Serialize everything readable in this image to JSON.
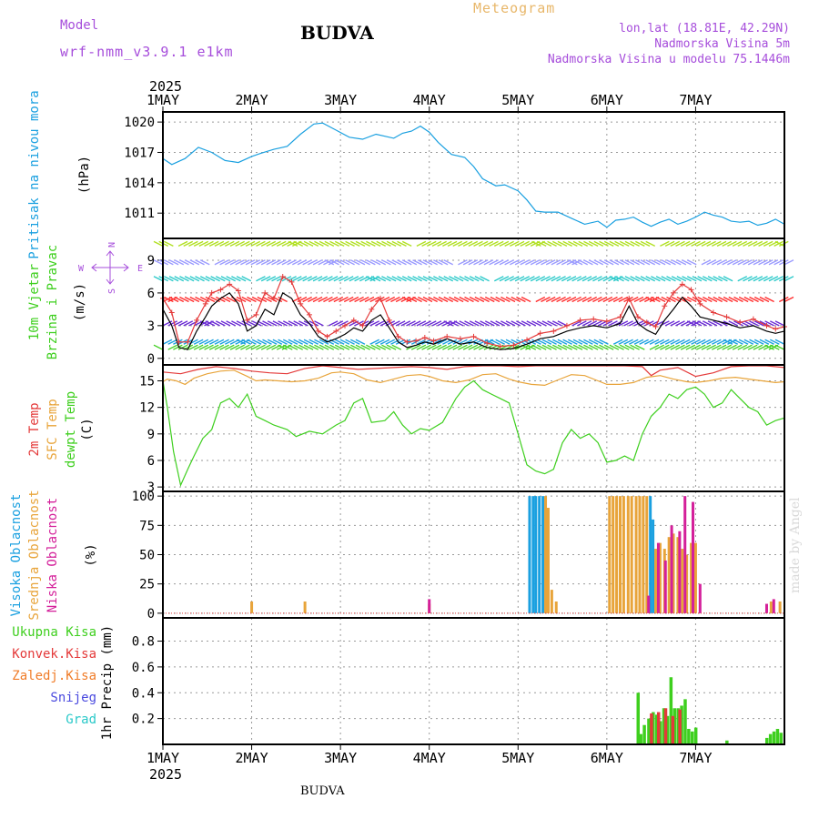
{
  "header": {
    "model_label": "Model",
    "model_name": "wrf-nmm_v3.9.1 e1km",
    "title": "BUDVA",
    "meteogram_label": "Meteogram",
    "lonlat": "lon,lat (18.81E, 42.29N)",
    "altitude": "Nadmorska Visina 5m",
    "model_altitude": "Nadmorska Visina u modelu 75.1446m",
    "footer_title": "BUDVA",
    "credit": "made by Angel"
  },
  "colors": {
    "pressure": "#1aa0e0",
    "wind_speed": "#000000",
    "wind_gust": "#e43a3a",
    "temp_2m": "#e43a3a",
    "temp_sfc": "#e8a43a",
    "dewpoint": "#3ecf1e",
    "cloud_high": "#1aa0e0",
    "cloud_mid": "#e8a43a",
    "cloud_low": "#d4209a",
    "precip_total": "#3ecf1e",
    "precip_conv": "#e43a3a",
    "precip_frz": "#f07c28",
    "precip_snow": "#4a4adf",
    "precip_graupel": "#2ac9c9",
    "compass": "#a64ddb"
  },
  "chart_data": [
    {
      "type": "line",
      "panel": "pressure",
      "ylabel": "Pritisak na nivou mora",
      "unit": "(hPa)",
      "ylim": [
        1008.5,
        1021
      ],
      "yticks": [
        1011,
        1014,
        1017,
        1020
      ],
      "x_year": "2025",
      "x_ticks": [
        "1MAY",
        "2MAY",
        "3MAY",
        "4MAY",
        "5MAY",
        "6MAY",
        "7MAY"
      ],
      "grid": true,
      "series": [
        {
          "x": [
            0,
            0.1,
            0.25,
            0.4,
            0.55,
            0.7,
            0.85,
            1.0,
            1.1,
            1.25,
            1.4,
            1.55,
            1.7,
            1.8,
            1.95,
            2.1,
            2.25,
            2.4,
            2.5,
            2.6,
            2.7,
            2.8,
            2.9,
            3.0,
            3.1,
            3.25,
            3.4,
            3.5,
            3.6,
            3.75,
            3.85,
            4.0,
            4.1,
            4.2,
            4.3,
            4.45,
            4.6,
            4.75,
            4.9,
            5.0,
            5.1,
            5.2,
            5.3,
            5.4,
            5.5,
            5.6,
            5.7,
            5.8,
            5.9,
            6.0,
            6.1,
            6.2,
            6.3,
            6.4,
            6.5,
            6.6,
            6.7,
            6.8,
            6.9,
            7.0
          ],
          "values": [
            1016.4,
            1015.8,
            1016.4,
            1017.5,
            1017.0,
            1016.2,
            1016.0,
            1016.6,
            1016.9,
            1017.3,
            1017.6,
            1018.8,
            1019.8,
            1019.9,
            1019.2,
            1018.5,
            1018.3,
            1018.8,
            1018.6,
            1018.4,
            1018.9,
            1019.1,
            1019.6,
            1019.0,
            1018.0,
            1016.8,
            1016.5,
            1015.6,
            1014.4,
            1013.7,
            1013.8,
            1013.2,
            1012.3,
            1011.2,
            1011.1,
            1011.1,
            1010.5,
            1009.9,
            1010.2,
            1009.6,
            1010.3,
            1010.4,
            1010.6,
            1010.1,
            1009.7,
            1010.1,
            1010.4,
            1009.9,
            1010.2,
            1010.6,
            1011.1,
            1010.8,
            1010.6,
            1010.2,
            1010.1,
            1010.2,
            1009.8,
            1010.0,
            1010.4,
            1009.9
          ]
        }
      ]
    },
    {
      "type": "line",
      "panel": "wind",
      "ylabel": [
        "10m Vjetar",
        "Brzina i Pravac"
      ],
      "unit": "(m/s)",
      "compass": [
        "W",
        "E",
        "N",
        "S"
      ],
      "ylim": [
        -0.6,
        11
      ],
      "yticks": [
        0,
        3,
        6,
        9
      ],
      "grid": true,
      "barb_levels": [
        0.8,
        1.3,
        3.0,
        5.2,
        7.1,
        8.6,
        10.3
      ],
      "barb_colors": [
        "#3ecf1e",
        "#1aa0e0",
        "#6a2ad4",
        "#ff2a2a",
        "#2ac9c9",
        "#9a9aff",
        "#b0e020"
      ],
      "series": [
        {
          "name": "speed",
          "x": [
            0,
            0.1,
            0.18,
            0.28,
            0.38,
            0.48,
            0.55,
            0.65,
            0.75,
            0.85,
            0.95,
            1.05,
            1.15,
            1.25,
            1.35,
            1.45,
            1.55,
            1.65,
            1.75,
            1.85,
            1.95,
            2.05,
            2.15,
            2.25,
            2.35,
            2.45,
            2.55,
            2.65,
            2.75,
            2.85,
            2.95,
            3.05,
            3.2,
            3.35,
            3.5,
            3.65,
            3.8,
            3.95,
            4.1,
            4.25,
            4.4,
            4.55,
            4.7,
            4.85,
            5.0,
            5.15,
            5.25,
            5.35,
            5.45,
            5.55,
            5.65,
            5.75,
            5.85,
            5.95,
            6.05,
            6.2,
            6.35,
            6.5,
            6.65,
            6.8,
            6.9,
            7.0
          ],
          "values": [
            4.5,
            3.0,
            1.0,
            0.8,
            2.5,
            3.8,
            4.8,
            5.5,
            6.0,
            5.0,
            2.5,
            3.0,
            4.5,
            4.0,
            6.0,
            5.5,
            4.0,
            3.2,
            2.0,
            1.5,
            1.8,
            2.2,
            2.8,
            2.5,
            3.5,
            4.0,
            2.8,
            1.5,
            1.0,
            1.2,
            1.5,
            1.3,
            1.8,
            1.3,
            1.5,
            1.0,
            0.8,
            0.9,
            1.3,
            1.8,
            2.0,
            2.5,
            2.8,
            3.0,
            2.8,
            3.2,
            4.8,
            3.2,
            2.6,
            2.2,
            3.5,
            4.5,
            5.6,
            4.8,
            3.8,
            3.5,
            3.2,
            2.8,
            3.0,
            2.5,
            2.3,
            2.5
          ]
        },
        {
          "name": "gust",
          "x": [
            0,
            0.1,
            0.18,
            0.28,
            0.38,
            0.48,
            0.55,
            0.65,
            0.75,
            0.85,
            0.95,
            1.05,
            1.15,
            1.25,
            1.35,
            1.45,
            1.55,
            1.65,
            1.75,
            1.85,
            1.95,
            2.05,
            2.15,
            2.25,
            2.35,
            2.45,
            2.55,
            2.65,
            2.75,
            2.85,
            2.95,
            3.05,
            3.2,
            3.35,
            3.5,
            3.65,
            3.8,
            3.95,
            4.1,
            4.25,
            4.4,
            4.55,
            4.7,
            4.85,
            5.0,
            5.15,
            5.25,
            5.35,
            5.45,
            5.55,
            5.65,
            5.75,
            5.85,
            5.95,
            6.05,
            6.2,
            6.35,
            6.5,
            6.65,
            6.8,
            6.9,
            7.0
          ],
          "values": [
            5.5,
            4.2,
            1.5,
            1.5,
            3.5,
            5.0,
            6.0,
            6.3,
            6.8,
            6.2,
            3.5,
            4.0,
            6.0,
            5.5,
            7.5,
            7.0,
            5.0,
            4.0,
            2.5,
            2.0,
            2.5,
            3.0,
            3.5,
            3.0,
            4.5,
            5.5,
            3.5,
            2.0,
            1.5,
            1.6,
            1.9,
            1.6,
            2.0,
            1.8,
            2.0,
            1.4,
            1.1,
            1.2,
            1.7,
            2.3,
            2.5,
            3.0,
            3.5,
            3.6,
            3.4,
            3.8,
            5.5,
            3.8,
            3.3,
            2.9,
            4.8,
            6.0,
            6.8,
            6.3,
            5.0,
            4.2,
            3.8,
            3.3,
            3.6,
            3.0,
            2.7,
            2.9
          ]
        }
      ]
    },
    {
      "type": "line",
      "panel": "temperature",
      "ylabel": [
        "2m Temp",
        "SFC Temp",
        "dewpt Temp"
      ],
      "unit": "(C)",
      "ylim": [
        2.5,
        16.8
      ],
      "yticks": [
        3,
        6,
        9,
        12,
        15
      ],
      "grid": true,
      "series": [
        {
          "name": "2m Temp",
          "x": [
            0,
            0.2,
            0.4,
            0.6,
            0.8,
            1.0,
            1.2,
            1.4,
            1.6,
            1.8,
            2.0,
            2.2,
            2.4,
            2.6,
            2.8,
            3.0,
            3.2,
            3.4,
            3.6,
            3.8,
            4.0,
            4.2,
            4.4,
            4.6,
            4.8,
            5.0,
            5.2,
            5.4,
            5.5,
            5.6,
            5.8,
            6.0,
            6.2,
            6.4,
            6.6,
            6.8,
            7.0
          ],
          "values": [
            16.0,
            15.8,
            16.3,
            16.6,
            16.4,
            16.1,
            15.9,
            15.8,
            16.4,
            16.7,
            16.5,
            16.3,
            16.4,
            16.5,
            16.6,
            16.5,
            16.3,
            16.6,
            16.8,
            16.7,
            16.6,
            16.8,
            16.9,
            16.8,
            16.7,
            16.9,
            16.8,
            16.6,
            15.6,
            16.2,
            16.5,
            15.5,
            15.9,
            16.6,
            17.2,
            16.7,
            16.5
          ]
        },
        {
          "name": "SFC Temp",
          "x": [
            0,
            0.05,
            0.15,
            0.25,
            0.35,
            0.5,
            0.65,
            0.8,
            0.95,
            1.05,
            1.15,
            1.3,
            1.45,
            1.6,
            1.75,
            1.9,
            2.0,
            2.15,
            2.3,
            2.45,
            2.6,
            2.75,
            2.9,
            3.0,
            3.15,
            3.3,
            3.45,
            3.6,
            3.75,
            3.9,
            4.0,
            4.15,
            4.3,
            4.45,
            4.6,
            4.75,
            4.9,
            5.0,
            5.15,
            5.3,
            5.45,
            5.6,
            5.75,
            5.9,
            6.0,
            6.15,
            6.3,
            6.45,
            6.6,
            6.75,
            6.9,
            7.0
          ],
          "values": [
            14.9,
            15.2,
            15.0,
            14.6,
            15.3,
            15.8,
            16.1,
            16.2,
            15.5,
            15.0,
            15.1,
            15.0,
            14.9,
            15.0,
            15.3,
            15.9,
            16.0,
            15.8,
            15.1,
            14.8,
            15.2,
            15.6,
            15.7,
            15.5,
            15.0,
            14.8,
            15.1,
            15.7,
            15.8,
            15.2,
            14.9,
            14.6,
            14.5,
            15.1,
            15.7,
            15.6,
            15.0,
            14.6,
            14.6,
            14.8,
            15.4,
            15.6,
            15.2,
            14.9,
            14.8,
            15.0,
            15.3,
            15.4,
            15.2,
            15.0,
            14.8,
            14.9
          ]
        },
        {
          "name": "dewpt Temp",
          "x": [
            0,
            0.05,
            0.12,
            0.2,
            0.28,
            0.35,
            0.45,
            0.55,
            0.65,
            0.75,
            0.85,
            0.95,
            1.05,
            1.15,
            1.25,
            1.4,
            1.5,
            1.65,
            1.8,
            1.95,
            2.05,
            2.15,
            2.25,
            2.35,
            2.5,
            2.6,
            2.7,
            2.8,
            2.9,
            3.0,
            3.15,
            3.3,
            3.4,
            3.5,
            3.6,
            3.7,
            3.8,
            3.9,
            4.0,
            4.1,
            4.2,
            4.3,
            4.4,
            4.5,
            4.6,
            4.7,
            4.8,
            4.9,
            5.0,
            5.1,
            5.2,
            5.3,
            5.4,
            5.5,
            5.6,
            5.7,
            5.8,
            5.9,
            6.0,
            6.1,
            6.2,
            6.3,
            6.4,
            6.5,
            6.6,
            6.7,
            6.8,
            6.9,
            7.0
          ],
          "values": [
            15.0,
            12.0,
            7.0,
            3.2,
            5.0,
            6.5,
            8.5,
            9.5,
            12.5,
            13.0,
            12.0,
            13.5,
            11.0,
            10.5,
            10.0,
            9.5,
            8.7,
            9.3,
            9.0,
            10.0,
            10.5,
            12.5,
            13.0,
            10.3,
            10.5,
            11.5,
            10.0,
            9.0,
            9.6,
            9.4,
            10.3,
            13.0,
            14.3,
            15.0,
            14.0,
            13.5,
            13.0,
            12.5,
            9.0,
            5.5,
            4.8,
            4.5,
            5.0,
            8.0,
            9.5,
            8.5,
            9.0,
            8.0,
            5.8,
            6.0,
            6.5,
            6.0,
            9.0,
            11.0,
            12.0,
            13.5,
            13.0,
            14.0,
            14.3,
            13.5,
            12.0,
            12.5,
            14.0,
            13.0,
            12.0,
            11.5,
            10.0,
            10.5,
            10.8
          ]
        }
      ]
    },
    {
      "type": "bar",
      "panel": "cloud",
      "ylabel": [
        "Visoka Oblacnost",
        "Srednja Oblacnost",
        "Niska Oblacnost"
      ],
      "unit": "(%)",
      "ylim": [
        -4,
        104
      ],
      "yticks": [
        0,
        25,
        50,
        75,
        100
      ],
      "grid": true,
      "series": [
        {
          "name": "Visoka Oblacnost",
          "x": [
            4.13,
            4.17,
            4.2,
            4.24,
            4.28,
            5.49,
            5.52
          ],
          "values": [
            100,
            100,
            100,
            100,
            100,
            100,
            80
          ]
        },
        {
          "name": "Srednja Oblacnost",
          "x": [
            1.0,
            1.6,
            3.0,
            4.31,
            4.34,
            4.38,
            4.43,
            5.03,
            5.07,
            5.11,
            5.15,
            5.19,
            5.24,
            5.28,
            5.33,
            5.37,
            5.41,
            5.45,
            5.55,
            5.6,
            5.65,
            5.7,
            5.75,
            5.8,
            5.85,
            5.9,
            5.95,
            6.0,
            6.85,
            6.95
          ],
          "values": [
            10,
            10,
            8,
            100,
            90,
            20,
            10,
            100,
            100,
            100,
            100,
            100,
            100,
            100,
            100,
            100,
            100,
            100,
            55,
            60,
            55,
            65,
            68,
            65,
            55,
            50,
            60,
            60,
            10,
            10
          ]
        },
        {
          "name": "Niska Oblacnost",
          "x": [
            3.0,
            5.47,
            5.58,
            5.66,
            5.73,
            5.82,
            5.88,
            5.97,
            6.05,
            6.8,
            6.88
          ],
          "values": [
            12,
            15,
            60,
            45,
            75,
            70,
            100,
            95,
            25,
            8,
            12
          ]
        }
      ]
    },
    {
      "type": "bar",
      "panel": "precip",
      "ylabel": "1hr Precip",
      "unit": "(mm)",
      "legend": [
        "Ukupna Kisa",
        "Konvek.Kisa",
        "Zaledj.Kisa",
        "Snijeg",
        "Grad"
      ],
      "ylim": [
        0,
        0.98
      ],
      "yticks": [
        0.2,
        0.4,
        0.6,
        0.8
      ],
      "grid": true,
      "series": [
        {
          "name": "Ukupna Kisa",
          "x": [
            5.35,
            5.38,
            5.42,
            5.47,
            5.52,
            5.56,
            5.6,
            5.64,
            5.68,
            5.72,
            5.76,
            5.8,
            5.84,
            5.88,
            5.92,
            5.96,
            6.0,
            6.05,
            6.35,
            6.8,
            6.84,
            6.88,
            6.92,
            6.96
          ],
          "values": [
            0.4,
            0.08,
            0.15,
            0.2,
            0.25,
            0.23,
            0.18,
            0.28,
            0.22,
            0.52,
            0.28,
            0.28,
            0.3,
            0.35,
            0.12,
            0.1,
            0.13,
            0,
            0.03,
            0.05,
            0.08,
            0.1,
            0.12,
            0.09
          ]
        },
        {
          "name": "Konvek.Kisa",
          "x": [
            5.5,
            5.58,
            5.66,
            5.74,
            5.82
          ],
          "values": [
            0.24,
            0.25,
            0.28,
            0.22,
            0.27
          ]
        }
      ]
    }
  ]
}
